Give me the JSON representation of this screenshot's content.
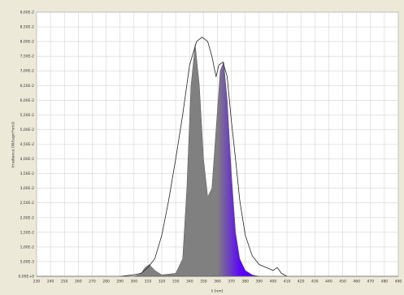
{
  "chart_data": {
    "type": "area",
    "y_label": "Irradiance [W/(sqm*nm)]",
    "x_label": "λ [nm]",
    "xlim": [
      230,
      490
    ],
    "xticks": [
      230,
      240,
      250,
      260,
      270,
      280,
      290,
      300,
      310,
      320,
      330,
      340,
      350,
      360,
      370,
      380,
      390,
      400,
      410,
      420,
      430,
      440,
      450,
      460,
      470,
      480,
      490
    ],
    "ylim": [
      0,
      0.09
    ],
    "yticks": [
      {
        "value": 0,
        "label": "0,00E+0"
      },
      {
        "value": 0.005,
        "label": "5,00E-3"
      },
      {
        "value": 0.01,
        "label": "1,00E-2"
      },
      {
        "value": 0.015,
        "label": "1,50E-2"
      },
      {
        "value": 0.02,
        "label": "2,00E-2"
      },
      {
        "value": 0.025,
        "label": "2,50E-2"
      },
      {
        "value": 0.03,
        "label": "3,00E-2"
      },
      {
        "value": 0.035,
        "label": "3,50E-2"
      },
      {
        "value": 0.04,
        "label": "4,00E-2"
      },
      {
        "value": 0.045,
        "label": "4,50E-2"
      },
      {
        "value": 0.05,
        "label": "5,00E-2"
      },
      {
        "value": 0.055,
        "label": "5,50E-2"
      },
      {
        "value": 0.06,
        "label": "6,00E-2"
      },
      {
        "value": 0.065,
        "label": "6,50E-2"
      },
      {
        "value": 0.07,
        "label": "7,00E-2"
      },
      {
        "value": 0.075,
        "label": "7,50E-2"
      },
      {
        "value": 0.08,
        "label": "8,00E-2"
      },
      {
        "value": 0.085,
        "label": "8,50E-2"
      },
      {
        "value": 0.09,
        "label": "9,00E-2"
      }
    ],
    "grid": true,
    "series": [
      {
        "filled": true,
        "gradient_stops": [
          {
            "x": 360,
            "color": "#808080"
          },
          {
            "x": 377,
            "color": "#5a00ff"
          }
        ],
        "x": [
          300,
          305,
          308,
          311,
          315,
          320,
          330,
          335,
          338,
          341,
          344,
          347,
          350,
          353,
          356,
          359,
          362,
          364.5,
          367,
          370,
          373,
          376,
          380,
          385,
          390
        ],
        "values": [
          0,
          0.0008,
          0.003,
          0.004,
          0.002,
          0.0005,
          0.001,
          0.006,
          0.03,
          0.065,
          0.079,
          0.065,
          0.04,
          0.027,
          0.03,
          0.05,
          0.07,
          0.073,
          0.06,
          0.035,
          0.015,
          0.006,
          0.002,
          0.0005,
          0
        ]
      },
      {
        "filled": false,
        "color": "#222222",
        "x": [
          290,
          300,
          305,
          310,
          315,
          320,
          325,
          330,
          335,
          340,
          345,
          349,
          353,
          356,
          359,
          361,
          364,
          367,
          370,
          373,
          376,
          380,
          385,
          390,
          395,
          400,
          403,
          406,
          410
        ],
        "values": [
          0,
          0.0005,
          0.001,
          0.003,
          0.006,
          0.014,
          0.026,
          0.04,
          0.055,
          0.072,
          0.08,
          0.0815,
          0.08,
          0.075,
          0.068,
          0.072,
          0.073,
          0.068,
          0.053,
          0.04,
          0.026,
          0.014,
          0.007,
          0.004,
          0.003,
          0.002,
          0.003,
          0.001,
          0
        ]
      }
    ]
  }
}
